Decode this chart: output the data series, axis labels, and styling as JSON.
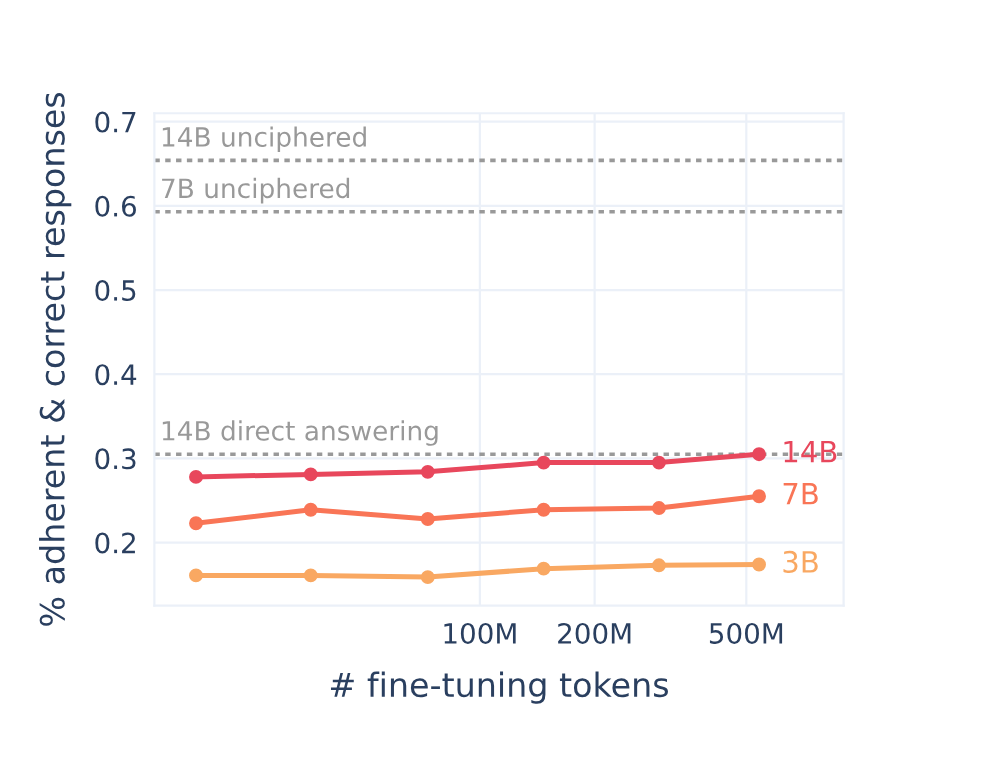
{
  "chart_data": {
    "type": "line",
    "xlabel": "# fine-tuning tokens",
    "ylabel": "% adherent & correct responses",
    "x": [
      18000000,
      36000000,
      73000000,
      147000000,
      295000000,
      540000000
    ],
    "series": [
      {
        "name": "14B",
        "color": "#e8475c",
        "values": [
          0.278,
          0.281,
          0.284,
          0.295,
          0.295,
          0.305
        ]
      },
      {
        "name": "7B",
        "color": "#f97556",
        "values": [
          0.223,
          0.239,
          0.228,
          0.239,
          0.241,
          0.255
        ]
      },
      {
        "name": "3B",
        "color": "#f9a862",
        "values": [
          0.161,
          0.161,
          0.159,
          0.169,
          0.173,
          0.174
        ]
      }
    ],
    "log": "x",
    "xlim": [
      14000000,
      900000000
    ],
    "xticks": [
      {
        "value": 100000000,
        "label": "100M"
      },
      {
        "value": 200000000,
        "label": "200M"
      },
      {
        "value": 500000000,
        "label": "500M"
      }
    ],
    "ylim": [
      0.125,
      0.71
    ],
    "yticks": [
      0.2,
      0.3,
      0.4,
      0.5,
      0.6,
      0.7
    ],
    "ref_lines": [
      {
        "axis": "y",
        "value": 0.654,
        "label": "14B unciphered",
        "color": "#999999",
        "line_style": "dotted"
      },
      {
        "axis": "y",
        "value": 0.593,
        "label": "7B unciphered",
        "color": "#999999",
        "line_style": "dotted"
      },
      {
        "axis": "y",
        "value": 0.305,
        "label": "14B direct answering",
        "color": "#999999",
        "line_style": "dotted"
      }
    ],
    "grid": true,
    "marker": "circle",
    "line_style": "solid",
    "legend": false
  }
}
